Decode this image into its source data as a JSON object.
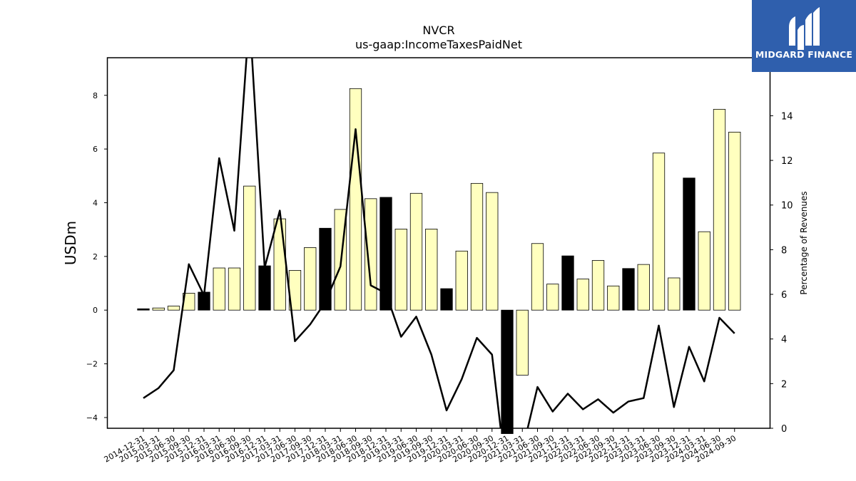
{
  "chart_data": {
    "type": "bar",
    "title": "NVCR",
    "subtitle": "us-gaap:IncomeTaxesPaidNet",
    "ylabel": "USDm",
    "y2label": "Percentage of Revenues",
    "ylim": [
      -4.4,
      9.4
    ],
    "y2lim": [
      0,
      16.6
    ],
    "yticks": [
      -4,
      -2,
      0,
      2,
      4,
      6,
      8
    ],
    "y2ticks": [
      0,
      2,
      4,
      6,
      8,
      10,
      12,
      14
    ],
    "grid": false,
    "categories": [
      "2014-12-31",
      "2015-03-31",
      "2015-06-30",
      "2015-09-30",
      "2015-12-31",
      "2016-03-31",
      "2016-06-30",
      "2016-09-30",
      "2016-12-31",
      "2017-03-31",
      "2017-06-30",
      "2017-09-30",
      "2017-12-31",
      "2018-03-31",
      "2018-06-30",
      "2018-09-30",
      "2018-12-31",
      "2019-03-31",
      "2019-06-30",
      "2019-09-30",
      "2019-12-31",
      "2020-03-31",
      "2020-06-30",
      "2020-09-30",
      "2020-12-31",
      "2021-03-31",
      "2021-06-30",
      "2021-09-30",
      "2021-12-31",
      "2022-03-31",
      "2022-06-30",
      "2022-09-30",
      "2022-12-31",
      "2023-03-31",
      "2023-06-30",
      "2023-09-30",
      "2023-12-31",
      "2024-03-31",
      "2024-06-30",
      "2024-09-30"
    ],
    "series": [
      {
        "type": "bar",
        "values": [
          0.05,
          0.08,
          0.15,
          0.63,
          0.67,
          1.57,
          1.57,
          4.62,
          1.65,
          3.4,
          1.48,
          2.33,
          3.05,
          3.75,
          8.25,
          4.15,
          4.2,
          3.02,
          4.35,
          3.02,
          0.8,
          2.2,
          4.72,
          4.38,
          -4.6,
          -2.42,
          2.48,
          0.97,
          2.02,
          1.16,
          1.85,
          0.9,
          1.55,
          1.7,
          5.85,
          1.2,
          4.92,
          2.92,
          7.48,
          6.63
        ],
        "highlight": [
          true,
          false,
          false,
          false,
          true,
          false,
          false,
          false,
          true,
          false,
          false,
          false,
          true,
          false,
          false,
          false,
          true,
          false,
          false,
          false,
          true,
          false,
          false,
          false,
          true,
          false,
          false,
          false,
          true,
          false,
          false,
          false,
          true,
          false,
          false,
          false,
          true,
          false,
          false,
          false
        ],
        "color": "#ffffbf",
        "highlight_color": "#000000"
      },
      {
        "type": "line",
        "axis": "y2",
        "values": [
          1.35,
          1.8,
          2.6,
          7.35,
          5.95,
          12.1,
          8.85,
          18.5,
          7.2,
          9.75,
          3.9,
          4.65,
          5.65,
          7.25,
          13.4,
          6.4,
          6.05,
          4.1,
          5.0,
          3.3,
          0.8,
          2.2,
          4.05,
          3.3,
          -2.5,
          -1.0,
          1.85,
          0.75,
          1.55,
          0.85,
          1.3,
          0.7,
          1.2,
          1.35,
          4.6,
          0.95,
          3.65,
          2.1,
          4.95,
          4.25
        ],
        "color": "#000000"
      }
    ]
  },
  "logo": {
    "text": "MIDGARD FINANCE",
    "color": "#2f5fad"
  }
}
